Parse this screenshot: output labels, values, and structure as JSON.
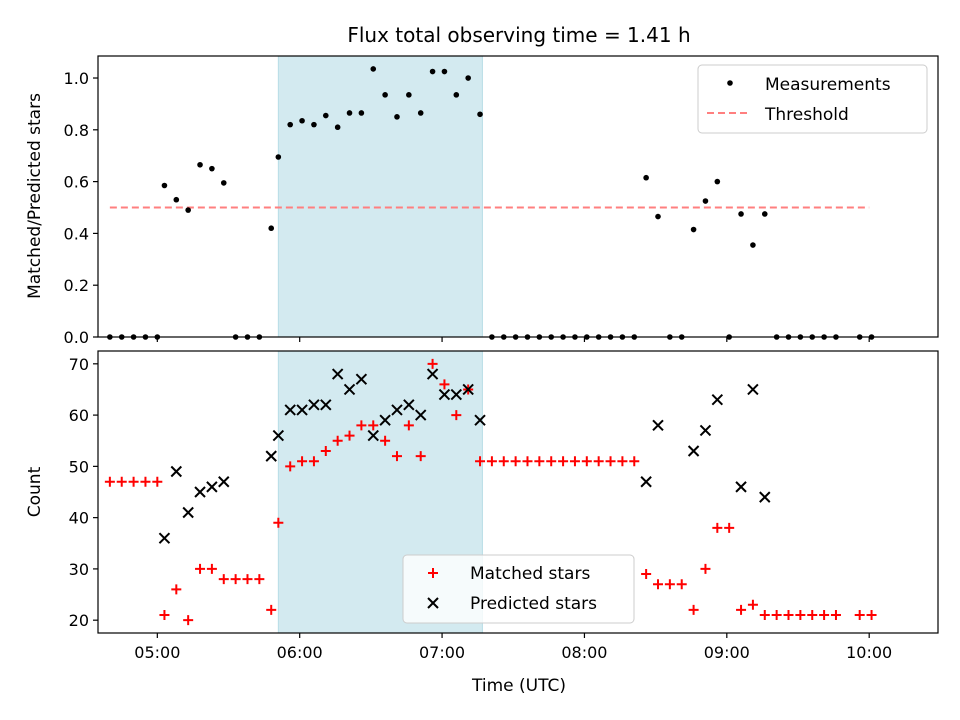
{
  "figure": {
    "title": "Flux total observing time = 1.41 h",
    "xlabel": "Time (UTC)"
  },
  "chart_data": [
    {
      "type": "scatter",
      "ylabel": "Matched/Predicted stars",
      "xlim": [
        "04:35",
        "10:29"
      ],
      "ylim": [
        0,
        1.085
      ],
      "yticks": [
        "0.0",
        "0.2",
        "0.4",
        "0.6",
        "0.8",
        "1.0"
      ],
      "ytick_values": [
        0,
        0.2,
        0.4,
        0.6,
        0.8,
        1.0
      ],
      "shaded_span": {
        "from": "05:51",
        "to": "07:17",
        "color": "#d3eaf0"
      },
      "threshold": {
        "y": 0.5,
        "from": "04:40",
        "to": "10:00",
        "color": "#ff7f7f"
      },
      "legend": {
        "position": "top-right",
        "items": [
          "Measurements",
          "Threshold"
        ]
      },
      "series": [
        {
          "name": "Measurements",
          "color": "#000000",
          "points": [
            [
              "04:40",
              0
            ],
            [
              "04:45",
              0
            ],
            [
              "04:50",
              0
            ],
            [
              "04:55",
              0
            ],
            [
              "05:00",
              0
            ],
            [
              "05:03",
              0.585
            ],
            [
              "05:08",
              0.53
            ],
            [
              "05:13",
              0.49
            ],
            [
              "05:18",
              0.665
            ],
            [
              "05:23",
              0.65
            ],
            [
              "05:28",
              0.595
            ],
            [
              "05:33",
              0
            ],
            [
              "05:38",
              0
            ],
            [
              "05:43",
              0
            ],
            [
              "05:48",
              0.42
            ],
            [
              "05:51",
              0.695
            ],
            [
              "05:56",
              0.82
            ],
            [
              "06:01",
              0.835
            ],
            [
              "06:06",
              0.82
            ],
            [
              "06:11",
              0.855
            ],
            [
              "06:16",
              0.81
            ],
            [
              "06:21",
              0.865
            ],
            [
              "06:26",
              0.865
            ],
            [
              "06:31",
              1.035
            ],
            [
              "06:36",
              0.935
            ],
            [
              "06:41",
              0.85
            ],
            [
              "06:46",
              0.935
            ],
            [
              "06:51",
              0.865
            ],
            [
              "06:56",
              1.025
            ],
            [
              "07:01",
              1.025
            ],
            [
              "07:06",
              0.935
            ],
            [
              "07:11",
              1.0
            ],
            [
              "07:16",
              0.86
            ],
            [
              "07:21",
              0
            ],
            [
              "07:26",
              0
            ],
            [
              "07:31",
              0
            ],
            [
              "07:36",
              0
            ],
            [
              "07:41",
              0
            ],
            [
              "07:46",
              0
            ],
            [
              "07:51",
              0
            ],
            [
              "07:56",
              0
            ],
            [
              "08:01",
              0
            ],
            [
              "08:06",
              0
            ],
            [
              "08:11",
              0
            ],
            [
              "08:16",
              0
            ],
            [
              "08:21",
              0
            ],
            [
              "08:26",
              0.615
            ],
            [
              "08:31",
              0.465
            ],
            [
              "08:36",
              0
            ],
            [
              "08:41",
              0
            ],
            [
              "08:46",
              0.415
            ],
            [
              "08:51",
              0.525
            ],
            [
              "08:56",
              0.6
            ],
            [
              "09:01",
              0
            ],
            [
              "09:06",
              0.475
            ],
            [
              "09:11",
              0.355
            ],
            [
              "09:16",
              0.475
            ],
            [
              "09:21",
              0
            ],
            [
              "09:26",
              0
            ],
            [
              "09:31",
              0
            ],
            [
              "09:36",
              0
            ],
            [
              "09:41",
              0
            ],
            [
              "09:46",
              0
            ],
            [
              "09:56",
              0
            ],
            [
              "10:01",
              0
            ]
          ]
        }
      ]
    },
    {
      "type": "scatter",
      "ylabel": "Count",
      "xlim": [
        "04:35",
        "10:29"
      ],
      "ylim": [
        17.5,
        72.5
      ],
      "yticks": [
        "20",
        "30",
        "40",
        "50",
        "60",
        "70"
      ],
      "ytick_values": [
        20,
        30,
        40,
        50,
        60,
        70
      ],
      "xticks": [
        "05:00",
        "06:00",
        "07:00",
        "08:00",
        "09:00",
        "10:00"
      ],
      "shaded_span": {
        "from": "05:51",
        "to": "07:17",
        "color": "#d3eaf0"
      },
      "legend": {
        "position": "lower-center",
        "items": [
          "Matched stars",
          "Predicted stars"
        ]
      },
      "series": [
        {
          "name": "Matched stars",
          "marker": "plus",
          "color": "#ff0000",
          "points": [
            [
              "04:40",
              47
            ],
            [
              "04:45",
              47
            ],
            [
              "04:50",
              47
            ],
            [
              "04:55",
              47
            ],
            [
              "05:00",
              47
            ],
            [
              "05:03",
              21
            ],
            [
              "05:08",
              26
            ],
            [
              "05:13",
              20
            ],
            [
              "05:18",
              30
            ],
            [
              "05:23",
              30
            ],
            [
              "05:28",
              28
            ],
            [
              "05:33",
              28
            ],
            [
              "05:38",
              28
            ],
            [
              "05:43",
              28
            ],
            [
              "05:48",
              22
            ],
            [
              "05:51",
              39
            ],
            [
              "05:56",
              50
            ],
            [
              "06:01",
              51
            ],
            [
              "06:06",
              51
            ],
            [
              "06:11",
              53
            ],
            [
              "06:16",
              55
            ],
            [
              "06:21",
              56
            ],
            [
              "06:26",
              58
            ],
            [
              "06:31",
              58
            ],
            [
              "06:36",
              55
            ],
            [
              "06:41",
              52
            ],
            [
              "06:46",
              58
            ],
            [
              "06:51",
              52
            ],
            [
              "06:56",
              70
            ],
            [
              "07:01",
              66
            ],
            [
              "07:06",
              60
            ],
            [
              "07:11",
              65
            ],
            [
              "07:16",
              51
            ],
            [
              "07:21",
              51
            ],
            [
              "07:26",
              51
            ],
            [
              "07:31",
              51
            ],
            [
              "07:36",
              51
            ],
            [
              "07:41",
              51
            ],
            [
              "07:46",
              51
            ],
            [
              "07:51",
              51
            ],
            [
              "07:56",
              51
            ],
            [
              "08:01",
              51
            ],
            [
              "08:06",
              51
            ],
            [
              "08:11",
              51
            ],
            [
              "08:16",
              51
            ],
            [
              "08:21",
              51
            ],
            [
              "08:26",
              29
            ],
            [
              "08:31",
              27
            ],
            [
              "08:36",
              27
            ],
            [
              "08:41",
              27
            ],
            [
              "08:46",
              22
            ],
            [
              "08:51",
              30
            ],
            [
              "08:56",
              38
            ],
            [
              "09:01",
              38
            ],
            [
              "09:06",
              22
            ],
            [
              "09:11",
              23
            ],
            [
              "09:16",
              21
            ],
            [
              "09:21",
              21
            ],
            [
              "09:26",
              21
            ],
            [
              "09:31",
              21
            ],
            [
              "09:36",
              21
            ],
            [
              "09:41",
              21
            ],
            [
              "09:46",
              21
            ],
            [
              "09:56",
              21
            ],
            [
              "10:01",
              21
            ]
          ]
        },
        {
          "name": "Predicted stars",
          "marker": "x",
          "color": "#000000",
          "points": [
            [
              "05:03",
              36
            ],
            [
              "05:08",
              49
            ],
            [
              "05:13",
              41
            ],
            [
              "05:18",
              45
            ],
            [
              "05:23",
              46
            ],
            [
              "05:28",
              47
            ],
            [
              "05:48",
              52
            ],
            [
              "05:51",
              56
            ],
            [
              "05:56",
              61
            ],
            [
              "06:01",
              61
            ],
            [
              "06:06",
              62
            ],
            [
              "06:11",
              62
            ],
            [
              "06:16",
              68
            ],
            [
              "06:21",
              65
            ],
            [
              "06:26",
              67
            ],
            [
              "06:31",
              56
            ],
            [
              "06:36",
              59
            ],
            [
              "06:41",
              61
            ],
            [
              "06:46",
              62
            ],
            [
              "06:51",
              60
            ],
            [
              "06:56",
              68
            ],
            [
              "07:01",
              64
            ],
            [
              "07:06",
              64
            ],
            [
              "07:11",
              65
            ],
            [
              "07:16",
              59
            ],
            [
              "08:26",
              47
            ],
            [
              "08:31",
              58
            ],
            [
              "08:46",
              53
            ],
            [
              "08:51",
              57
            ],
            [
              "08:56",
              63
            ],
            [
              "09:06",
              46
            ],
            [
              "09:11",
              65
            ],
            [
              "09:16",
              44
            ]
          ]
        }
      ]
    }
  ]
}
